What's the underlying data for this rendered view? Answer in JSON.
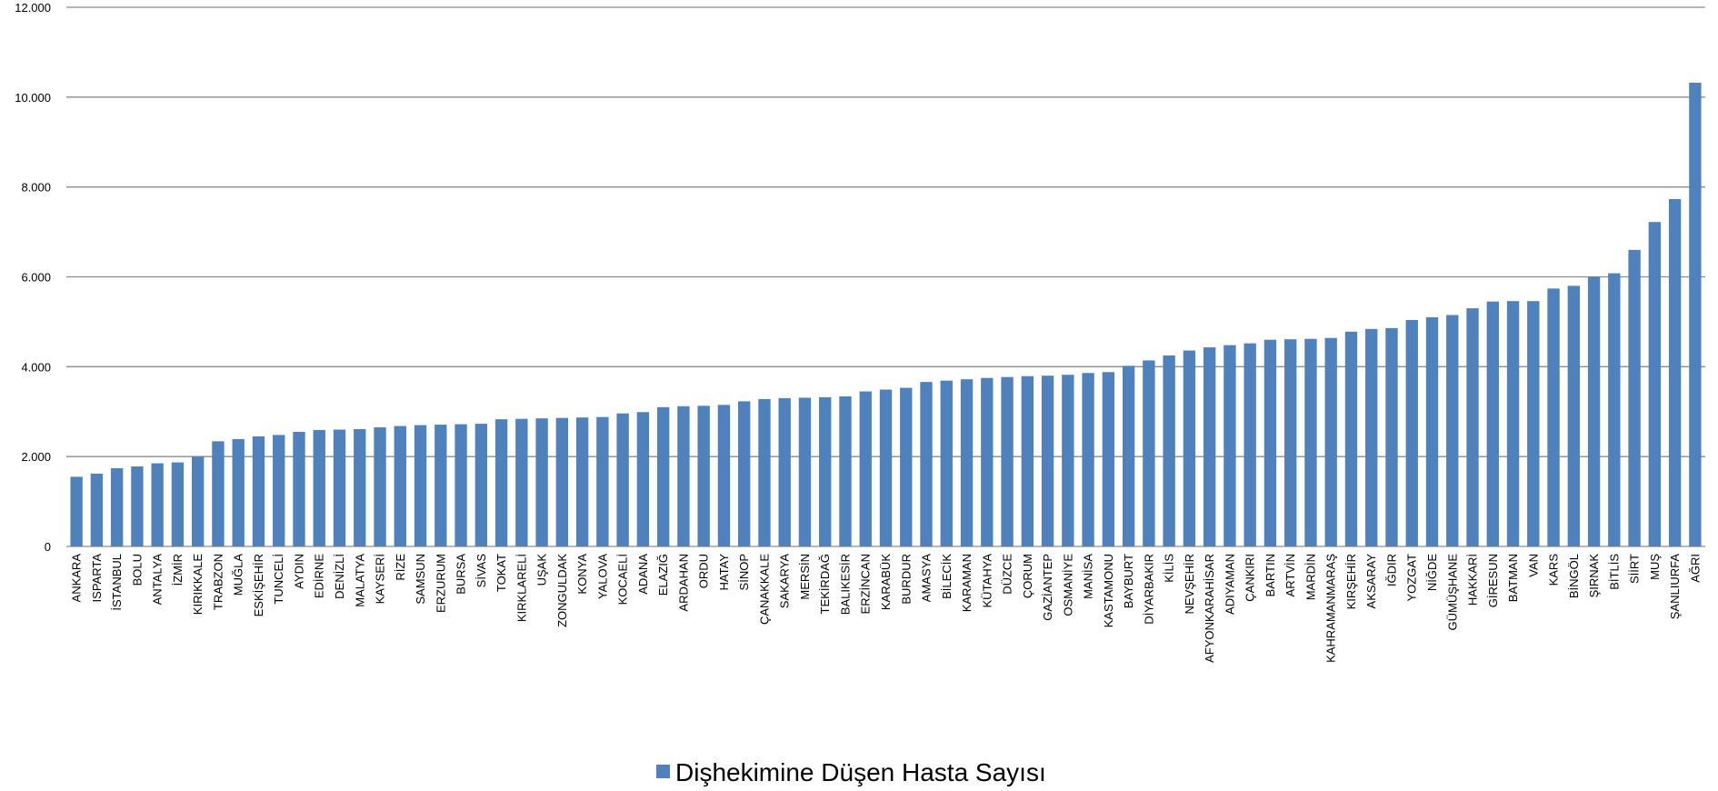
{
  "chart_data": {
    "type": "bar",
    "ylim": [
      0,
      12000
    ],
    "yticks": [
      0,
      2000,
      4000,
      6000,
      8000,
      10000,
      12000
    ],
    "ytick_labels": [
      "0",
      "2.000",
      "4.000",
      "6.000",
      "8.000",
      "10.000",
      "12.000"
    ],
    "grid": true,
    "legend_position": "bottom-center",
    "bar_color": "#4f81bd",
    "series": [
      {
        "name": "Dişhekimine Düşen Hasta Sayısı",
        "values": [
          1550,
          1620,
          1740,
          1780,
          1850,
          1870,
          2000,
          2340,
          2390,
          2450,
          2480,
          2550,
          2590,
          2600,
          2610,
          2650,
          2680,
          2700,
          2710,
          2720,
          2730,
          2830,
          2840,
          2850,
          2860,
          2870,
          2880,
          2960,
          2990,
          3100,
          3120,
          3130,
          3150,
          3230,
          3280,
          3300,
          3310,
          3320,
          3340,
          3450,
          3490,
          3530,
          3660,
          3690,
          3720,
          3750,
          3770,
          3790,
          3800,
          3820,
          3860,
          3880,
          4020,
          4140,
          4250,
          4360,
          4430,
          4480,
          4520,
          4600,
          4610,
          4620,
          4640,
          4780,
          4840,
          4860,
          5040,
          5100,
          5150,
          5300,
          5450,
          5460,
          5460,
          5740,
          5800,
          6000,
          6080,
          6600,
          7220,
          7730,
          10320
        ]
      }
    ],
    "categories": [
      "ANKARA",
      "ISPARTA",
      "İSTANBUL",
      "BOLU",
      "ANTALYA",
      "İZMİR",
      "KIRIKKALE",
      "TRABZON",
      "MUĞLA",
      "ESKİŞEHİR",
      "TUNCELİ",
      "AYDIN",
      "EDİRNE",
      "DENİZLİ",
      "MALATYA",
      "KAYSERİ",
      "RİZE",
      "SAMSUN",
      "ERZURUM",
      "BURSA",
      "SİVAS",
      "TOKAT",
      "KIRKLARELİ",
      "UŞAK",
      "ZONGULDAK",
      "KONYA",
      "YALOVA",
      "KOCAELİ",
      "ADANA",
      "ELAZIĞ",
      "ARDAHAN",
      "ORDU",
      "HATAY",
      "SİNOP",
      "ÇANAKKALE",
      "SAKARYA",
      "MERSİN",
      "TEKİRDAĞ",
      "BALIKESİR",
      "ERZİNCAN",
      "KARABÜK",
      "BURDUR",
      "AMASYA",
      "BİLECİK",
      "KARAMAN",
      "KÜTAHYA",
      "DÜZCE",
      "ÇORUM",
      "GAZİANTEP",
      "OSMANİYE",
      "MANİSA",
      "KASTAMONU",
      "BAYBURT",
      "DİYARBAKIR",
      "KİLİS",
      "NEVŞEHİR",
      "AFYONKARAHİSAR",
      "ADIYAMAN",
      "ÇANKIRI",
      "BARTIN",
      "ARTVİN",
      "MARDİN",
      "KAHRAMANMARAŞ",
      "KIRŞEHİR",
      "AKSARAY",
      "IĞDIR",
      "YOZGAT",
      "NİĞDE",
      "GÜMÜŞHANE",
      "HAKKARİ",
      "GİRESUN",
      "BATMAN",
      "VAN",
      "KARS",
      "BİNGÖL",
      "ŞIRNAK",
      "BİTLİS",
      "SİİRT",
      "MUŞ",
      "ŞANLIURFA",
      "AĞRI"
    ]
  }
}
